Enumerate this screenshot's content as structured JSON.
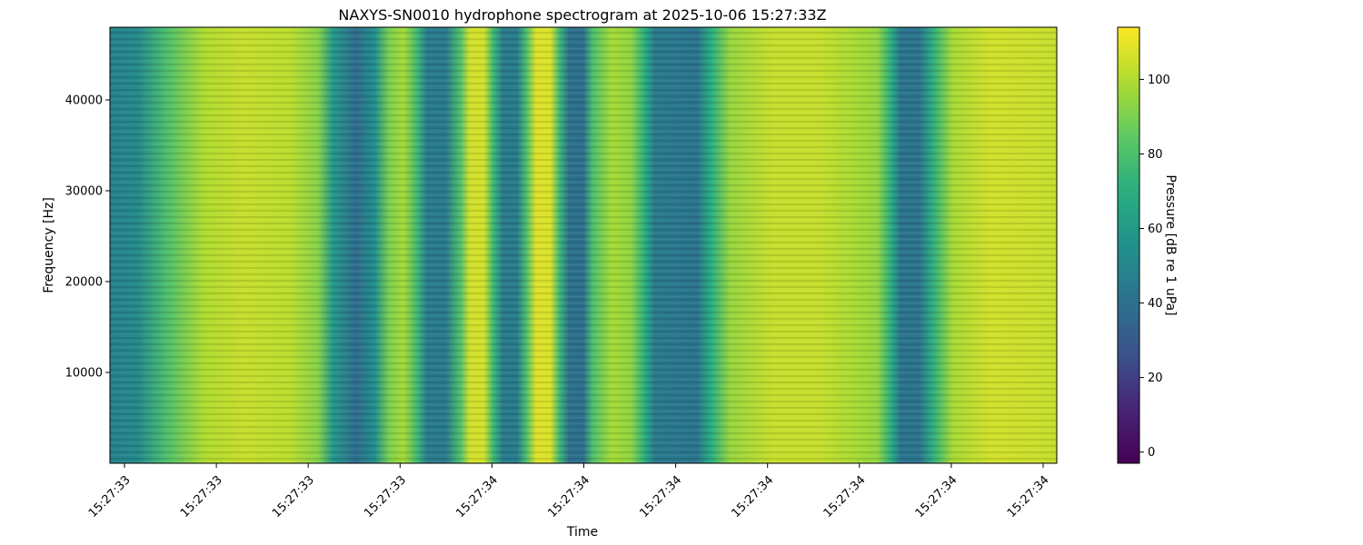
{
  "chart_data": {
    "type": "heatmap",
    "title": "NAXYS-SN0010 hydrophone spectrogram at 2025-10-06 15:27:33Z",
    "xlabel": "Time",
    "ylabel": "Frequency [Hz]",
    "colorbar_label": "Pressure [dB re 1 uPa]",
    "colormap": "viridis",
    "color_range": [
      -3,
      114
    ],
    "colorbar_ticks": [
      0,
      20,
      40,
      60,
      80,
      100
    ],
    "ylim": [
      0,
      48000
    ],
    "yticks": [
      10000,
      20000,
      30000,
      40000
    ],
    "xticks": [
      "15:27:33",
      "15:27:33",
      "15:27:33",
      "15:27:33",
      "15:27:34",
      "15:27:34",
      "15:27:34",
      "15:27:34",
      "15:27:34",
      "15:27:34",
      "15:27:34"
    ],
    "time_profile_db": [
      [
        0.0,
        48
      ],
      [
        0.03,
        52
      ],
      [
        0.06,
        80
      ],
      [
        0.1,
        100
      ],
      [
        0.14,
        104
      ],
      [
        0.19,
        102
      ],
      [
        0.22,
        92
      ],
      [
        0.235,
        60
      ],
      [
        0.26,
        38
      ],
      [
        0.28,
        55
      ],
      [
        0.295,
        90
      ],
      [
        0.31,
        98
      ],
      [
        0.325,
        75
      ],
      [
        0.335,
        45
      ],
      [
        0.355,
        45
      ],
      [
        0.37,
        80
      ],
      [
        0.38,
        106
      ],
      [
        0.395,
        106
      ],
      [
        0.405,
        75
      ],
      [
        0.415,
        45
      ],
      [
        0.43,
        45
      ],
      [
        0.44,
        80
      ],
      [
        0.45,
        108
      ],
      [
        0.465,
        108
      ],
      [
        0.475,
        75
      ],
      [
        0.485,
        40
      ],
      [
        0.5,
        40
      ],
      [
        0.51,
        80
      ],
      [
        0.53,
        98
      ],
      [
        0.55,
        94
      ],
      [
        0.565,
        70
      ],
      [
        0.575,
        45
      ],
      [
        0.62,
        42
      ],
      [
        0.635,
        70
      ],
      [
        0.655,
        95
      ],
      [
        0.7,
        104
      ],
      [
        0.75,
        104
      ],
      [
        0.79,
        98
      ],
      [
        0.81,
        95
      ],
      [
        0.825,
        70
      ],
      [
        0.835,
        42
      ],
      [
        0.855,
        42
      ],
      [
        0.87,
        72
      ],
      [
        0.89,
        98
      ],
      [
        0.93,
        106
      ],
      [
        0.97,
        105
      ],
      [
        1.0,
        104
      ]
    ]
  }
}
